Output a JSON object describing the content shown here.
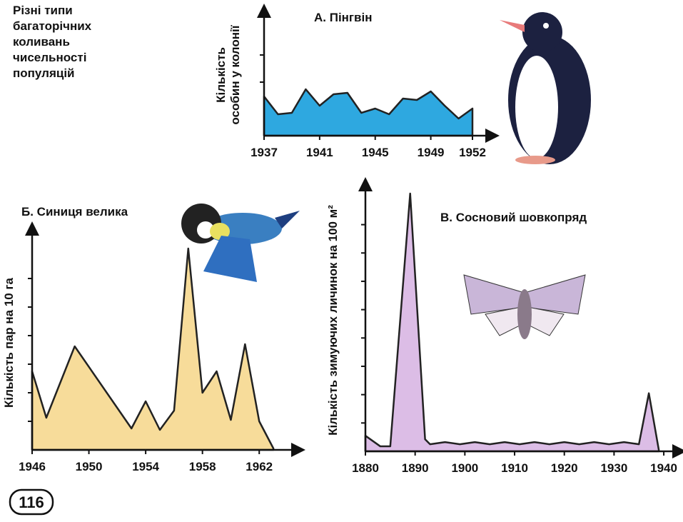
{
  "page_text": {
    "caption": [
      "Різні типи",
      "багаторічних",
      "коливань",
      "чисельності",
      "популяцій"
    ],
    "page_number": "116"
  },
  "chart_data": [
    {
      "type": "area",
      "title": "А. Пінгвін",
      "ylabel": [
        "Кількість",
        "особин у колонії"
      ],
      "color": "#2ea8e0",
      "x": [
        1937,
        1938,
        1939,
        1940,
        1941,
        1942,
        1943,
        1944,
        1945,
        1946,
        1947,
        1948,
        1949,
        1950,
        1951,
        1952
      ],
      "values": [
        5.5,
        3,
        3.2,
        6.5,
        4.2,
        5.8,
        6,
        3.2,
        3.8,
        3,
        5.2,
        5,
        6.2,
        4.2,
        2.4,
        3.8
      ],
      "xlim": [
        1937,
        1952
      ],
      "ylim": [
        0,
        17
      ],
      "xticks": [
        1937,
        1941,
        1945,
        1949,
        1952
      ],
      "yticks": [
        7.5,
        11.3
      ]
    },
    {
      "type": "area",
      "title": "Б. Синиця велика",
      "ylabel": [
        "Кількість пар на 10 га"
      ],
      "color": "#f7dc9a",
      "x": [
        1946,
        1947,
        1949,
        1953,
        1954,
        1955,
        1956,
        1957,
        1958,
        1959,
        1960,
        1961,
        1962,
        1963
      ],
      "values": [
        11,
        4.5,
        14.5,
        3,
        6.8,
        2.8,
        5.5,
        28.2,
        8,
        11,
        4.2,
        14.8,
        4,
        0.2
      ],
      "xlim": [
        1946,
        1964
      ],
      "ylim": [
        0,
        30
      ],
      "xticks": [
        1946,
        1950,
        1954,
        1958,
        1962
      ],
      "yticks": [
        4,
        8,
        12,
        16,
        20,
        24
      ]
    },
    {
      "type": "area",
      "title": "В. Сосновий шовкопряд",
      "ylabel": [
        "Кількість зимуючих личинок на 100 м²"
      ],
      "color": "#dcbde6",
      "x": [
        1880,
        1883,
        1885,
        1889,
        1892,
        1893,
        1896,
        1899,
        1902,
        1905,
        1908,
        1911,
        1914,
        1917,
        1920,
        1923,
        1926,
        1929,
        1932,
        1935,
        1937,
        1939
      ],
      "values": [
        2.2,
        0.7,
        0.7,
        36.4,
        1.7,
        1,
        1.3,
        1,
        1.3,
        1,
        1.3,
        1,
        1.3,
        1,
        1.3,
        1,
        1.3,
        1,
        1.3,
        1,
        8.2,
        0.2
      ],
      "xlim": [
        1880,
        1942
      ],
      "ylim": [
        0,
        37
      ],
      "xticks": [
        1880,
        1890,
        1900,
        1910,
        1920,
        1930,
        1940
      ],
      "yticks": [
        4,
        8,
        12,
        16,
        20,
        24,
        28,
        32
      ]
    }
  ]
}
